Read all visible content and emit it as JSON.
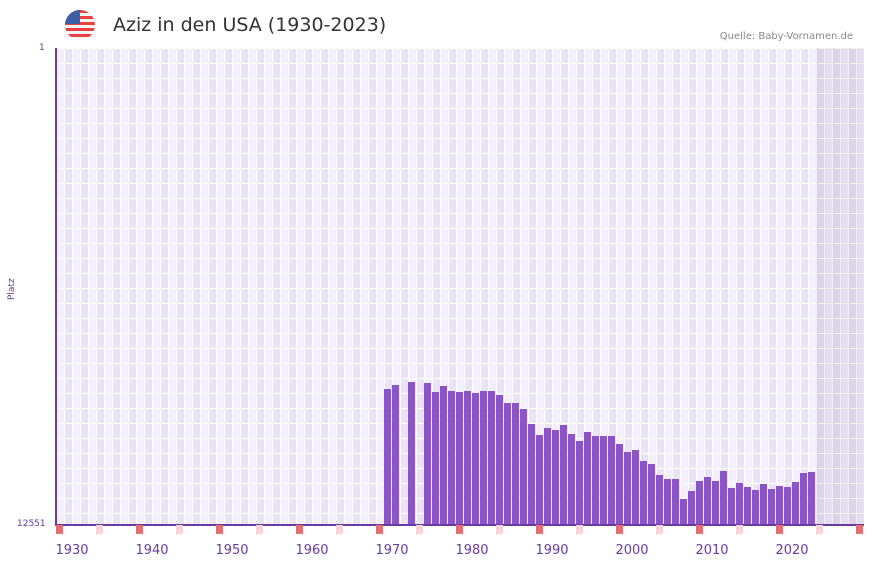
{
  "header": {
    "title": "Aziz in den USA (1930-2023)",
    "source": "Quelle: Baby-Vornamen.de",
    "flag_icon": "us-flag-icon"
  },
  "colors": {
    "bar": "#8a55c6",
    "axis": "#6a3aa0",
    "decade_marker": "#e07078",
    "half_decade_marker": "#f5d5dc"
  },
  "chart_data": {
    "type": "bar",
    "title": "Aziz in den USA (1930-2023)",
    "xlabel": "",
    "ylabel": "Platz",
    "ylim": [
      12551,
      1
    ],
    "y_inverted": true,
    "yticks": [
      "1",
      "12551"
    ],
    "xticks": [
      "1930",
      "1940",
      "1950",
      "1960",
      "1970",
      "1980",
      "1990",
      "2000",
      "2010",
      "2020"
    ],
    "x_range": [
      1928,
      2028
    ],
    "shaded_future_from": 2023,
    "grid": true,
    "categories": [
      1969,
      1970,
      1972,
      1974,
      1975,
      1976,
      1977,
      1978,
      1979,
      1980,
      1981,
      1982,
      1983,
      1984,
      1985,
      1986,
      1987,
      1988,
      1989,
      1990,
      1991,
      1992,
      1993,
      1994,
      1995,
      1996,
      1997,
      1998,
      1999,
      2000,
      2001,
      2002,
      2003,
      2004,
      2005,
      2006,
      2007,
      2008,
      2009,
      2010,
      2011,
      2012,
      2013,
      2014,
      2015,
      2016,
      2017,
      2018,
      2019,
      2020,
      2021,
      2022
    ],
    "values": [
      8992,
      8886,
      8807,
      8834,
      9071,
      8913,
      9044,
      9071,
      9044,
      9097,
      9044,
      9044,
      9150,
      9361,
      9361,
      9519,
      9914,
      10204,
      10020,
      10072,
      9941,
      10178,
      10362,
      10125,
      10230,
      10230,
      10230,
      10441,
      10652,
      10599,
      10889,
      10968,
      11258,
      11363,
      11363,
      11891,
      11680,
      11416,
      11311,
      11416,
      11152,
      11601,
      11469,
      11574,
      11653,
      11495,
      11627,
      11548,
      11574,
      11442,
      11205,
      11179
    ]
  },
  "axis": {
    "y_top": "1",
    "y_bottom": "12551",
    "y_label": "Platz"
  }
}
